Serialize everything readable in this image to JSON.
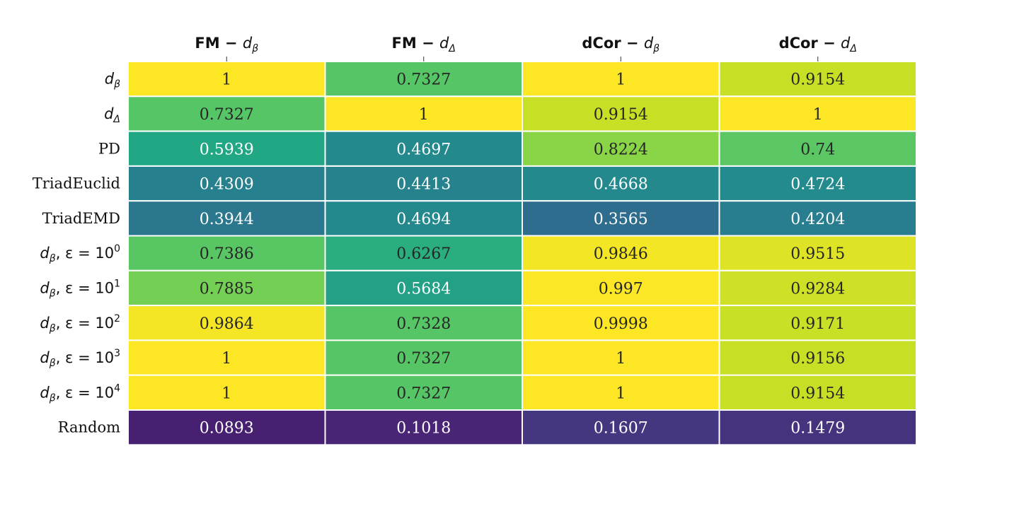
{
  "chart_data": {
    "type": "heatmap",
    "colormap": "viridis",
    "vmin": 0,
    "vmax": 1,
    "columns": [
      {
        "main": "FM",
        "sep": " − ",
        "var": "d",
        "sub": "β"
      },
      {
        "main": "FM",
        "sep": " − ",
        "var": "d",
        "sub": "Δ"
      },
      {
        "main": "dCor",
        "sep": " − ",
        "var": "d",
        "sub": "β"
      },
      {
        "main": "dCor",
        "sep": " − ",
        "var": "d",
        "sub": "Δ"
      }
    ],
    "rows": [
      {
        "kind": "math",
        "var": "d",
        "sub": "β",
        "eps": "",
        "exp": ""
      },
      {
        "kind": "math",
        "var": "d",
        "sub": "Δ",
        "eps": "",
        "exp": ""
      },
      {
        "kind": "text",
        "text": "PD"
      },
      {
        "kind": "text",
        "text": "TriadEuclid"
      },
      {
        "kind": "text",
        "text": "TriadEMD"
      },
      {
        "kind": "math",
        "var": "d",
        "sub": "β",
        "eps": ",  ε = 10",
        "exp": "0"
      },
      {
        "kind": "math",
        "var": "d",
        "sub": "β",
        "eps": ",  ε = 10",
        "exp": "1"
      },
      {
        "kind": "math",
        "var": "d",
        "sub": "β",
        "eps": ",  ε = 10",
        "exp": "2"
      },
      {
        "kind": "math",
        "var": "d",
        "sub": "β",
        "eps": ",  ε = 10",
        "exp": "3"
      },
      {
        "kind": "math",
        "var": "d",
        "sub": "β",
        "eps": ",  ε = 10",
        "exp": "4"
      },
      {
        "kind": "text",
        "text": "Random"
      }
    ],
    "values": [
      [
        "1",
        "0.7327",
        "1",
        "0.9154"
      ],
      [
        "0.7327",
        "1",
        "0.9154",
        "1"
      ],
      [
        "0.5939",
        "0.4697",
        "0.8224",
        "0.74"
      ],
      [
        "0.4309",
        "0.4413",
        "0.4668",
        "0.4724"
      ],
      [
        "0.3944",
        "0.4694",
        "0.3565",
        "0.4204"
      ],
      [
        "0.7386",
        "0.6267",
        "0.9846",
        "0.9515"
      ],
      [
        "0.7885",
        "0.5684",
        "0.997",
        "0.9284"
      ],
      [
        "0.9864",
        "0.7328",
        "0.9998",
        "0.9171"
      ],
      [
        "1",
        "0.7327",
        "1",
        "0.9156"
      ],
      [
        "1",
        "0.7327",
        "1",
        "0.9154"
      ],
      [
        "0.0893",
        "0.1018",
        "0.1607",
        "0.1479"
      ]
    ]
  }
}
